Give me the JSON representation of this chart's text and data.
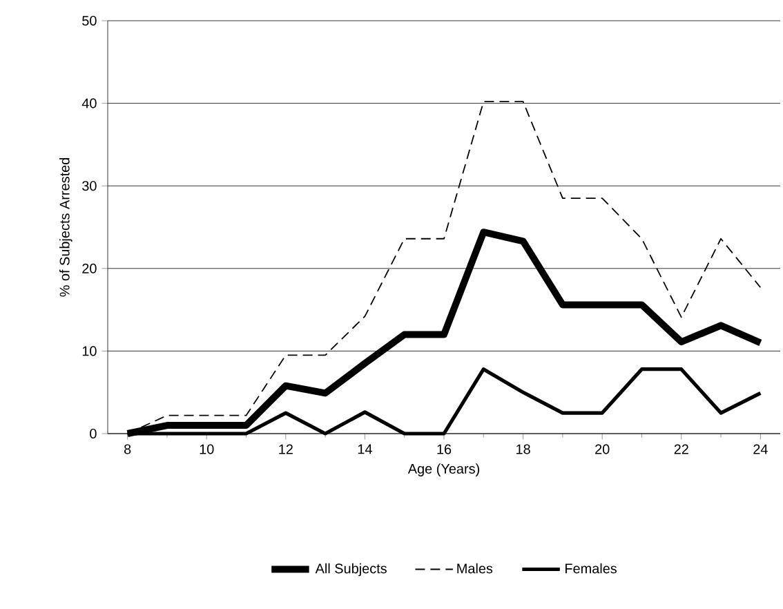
{
  "chart_data": {
    "type": "line",
    "xlabel": "Age (Years)",
    "ylabel": "% of Subjects Arrested",
    "x": [
      8,
      9,
      10,
      11,
      12,
      13,
      14,
      15,
      16,
      17,
      18,
      19,
      20,
      21,
      22,
      23,
      24
    ],
    "series": [
      {
        "name": "All Subjects",
        "color": "#000000",
        "line_style": "solid",
        "values": [
          0,
          1,
          1,
          1,
          5.8,
          4.9,
          8.5,
          12,
          12,
          24.4,
          23.3,
          15.6,
          15.6,
          15.6,
          11.1,
          13.1,
          11
        ]
      },
      {
        "name": "Males",
        "color": "#000000",
        "line_style": "dashed",
        "values": [
          0,
          2.2,
          2.2,
          2.2,
          9.5,
          9.5,
          14.2,
          23.6,
          23.6,
          40.2,
          40.2,
          28.5,
          28.5,
          23.6,
          14.1,
          23.6,
          17.7
        ]
      },
      {
        "name": "Females",
        "color": "#000000",
        "line_style": "solid",
        "values": [
          0,
          0,
          0,
          0,
          2.5,
          0,
          2.6,
          0,
          0,
          7.8,
          5,
          2.5,
          2.5,
          7.8,
          7.8,
          2.5,
          4.9
        ]
      }
    ],
    "xlim": [
      7.5,
      24.5
    ],
    "xticks": [
      8,
      10,
      12,
      14,
      16,
      18,
      20,
      22,
      24
    ],
    "ylim": [
      0,
      50
    ],
    "yticks": [
      0,
      10,
      20,
      30,
      40,
      50
    ],
    "grid": "y",
    "legend": "bottom",
    "marker": "none"
  }
}
